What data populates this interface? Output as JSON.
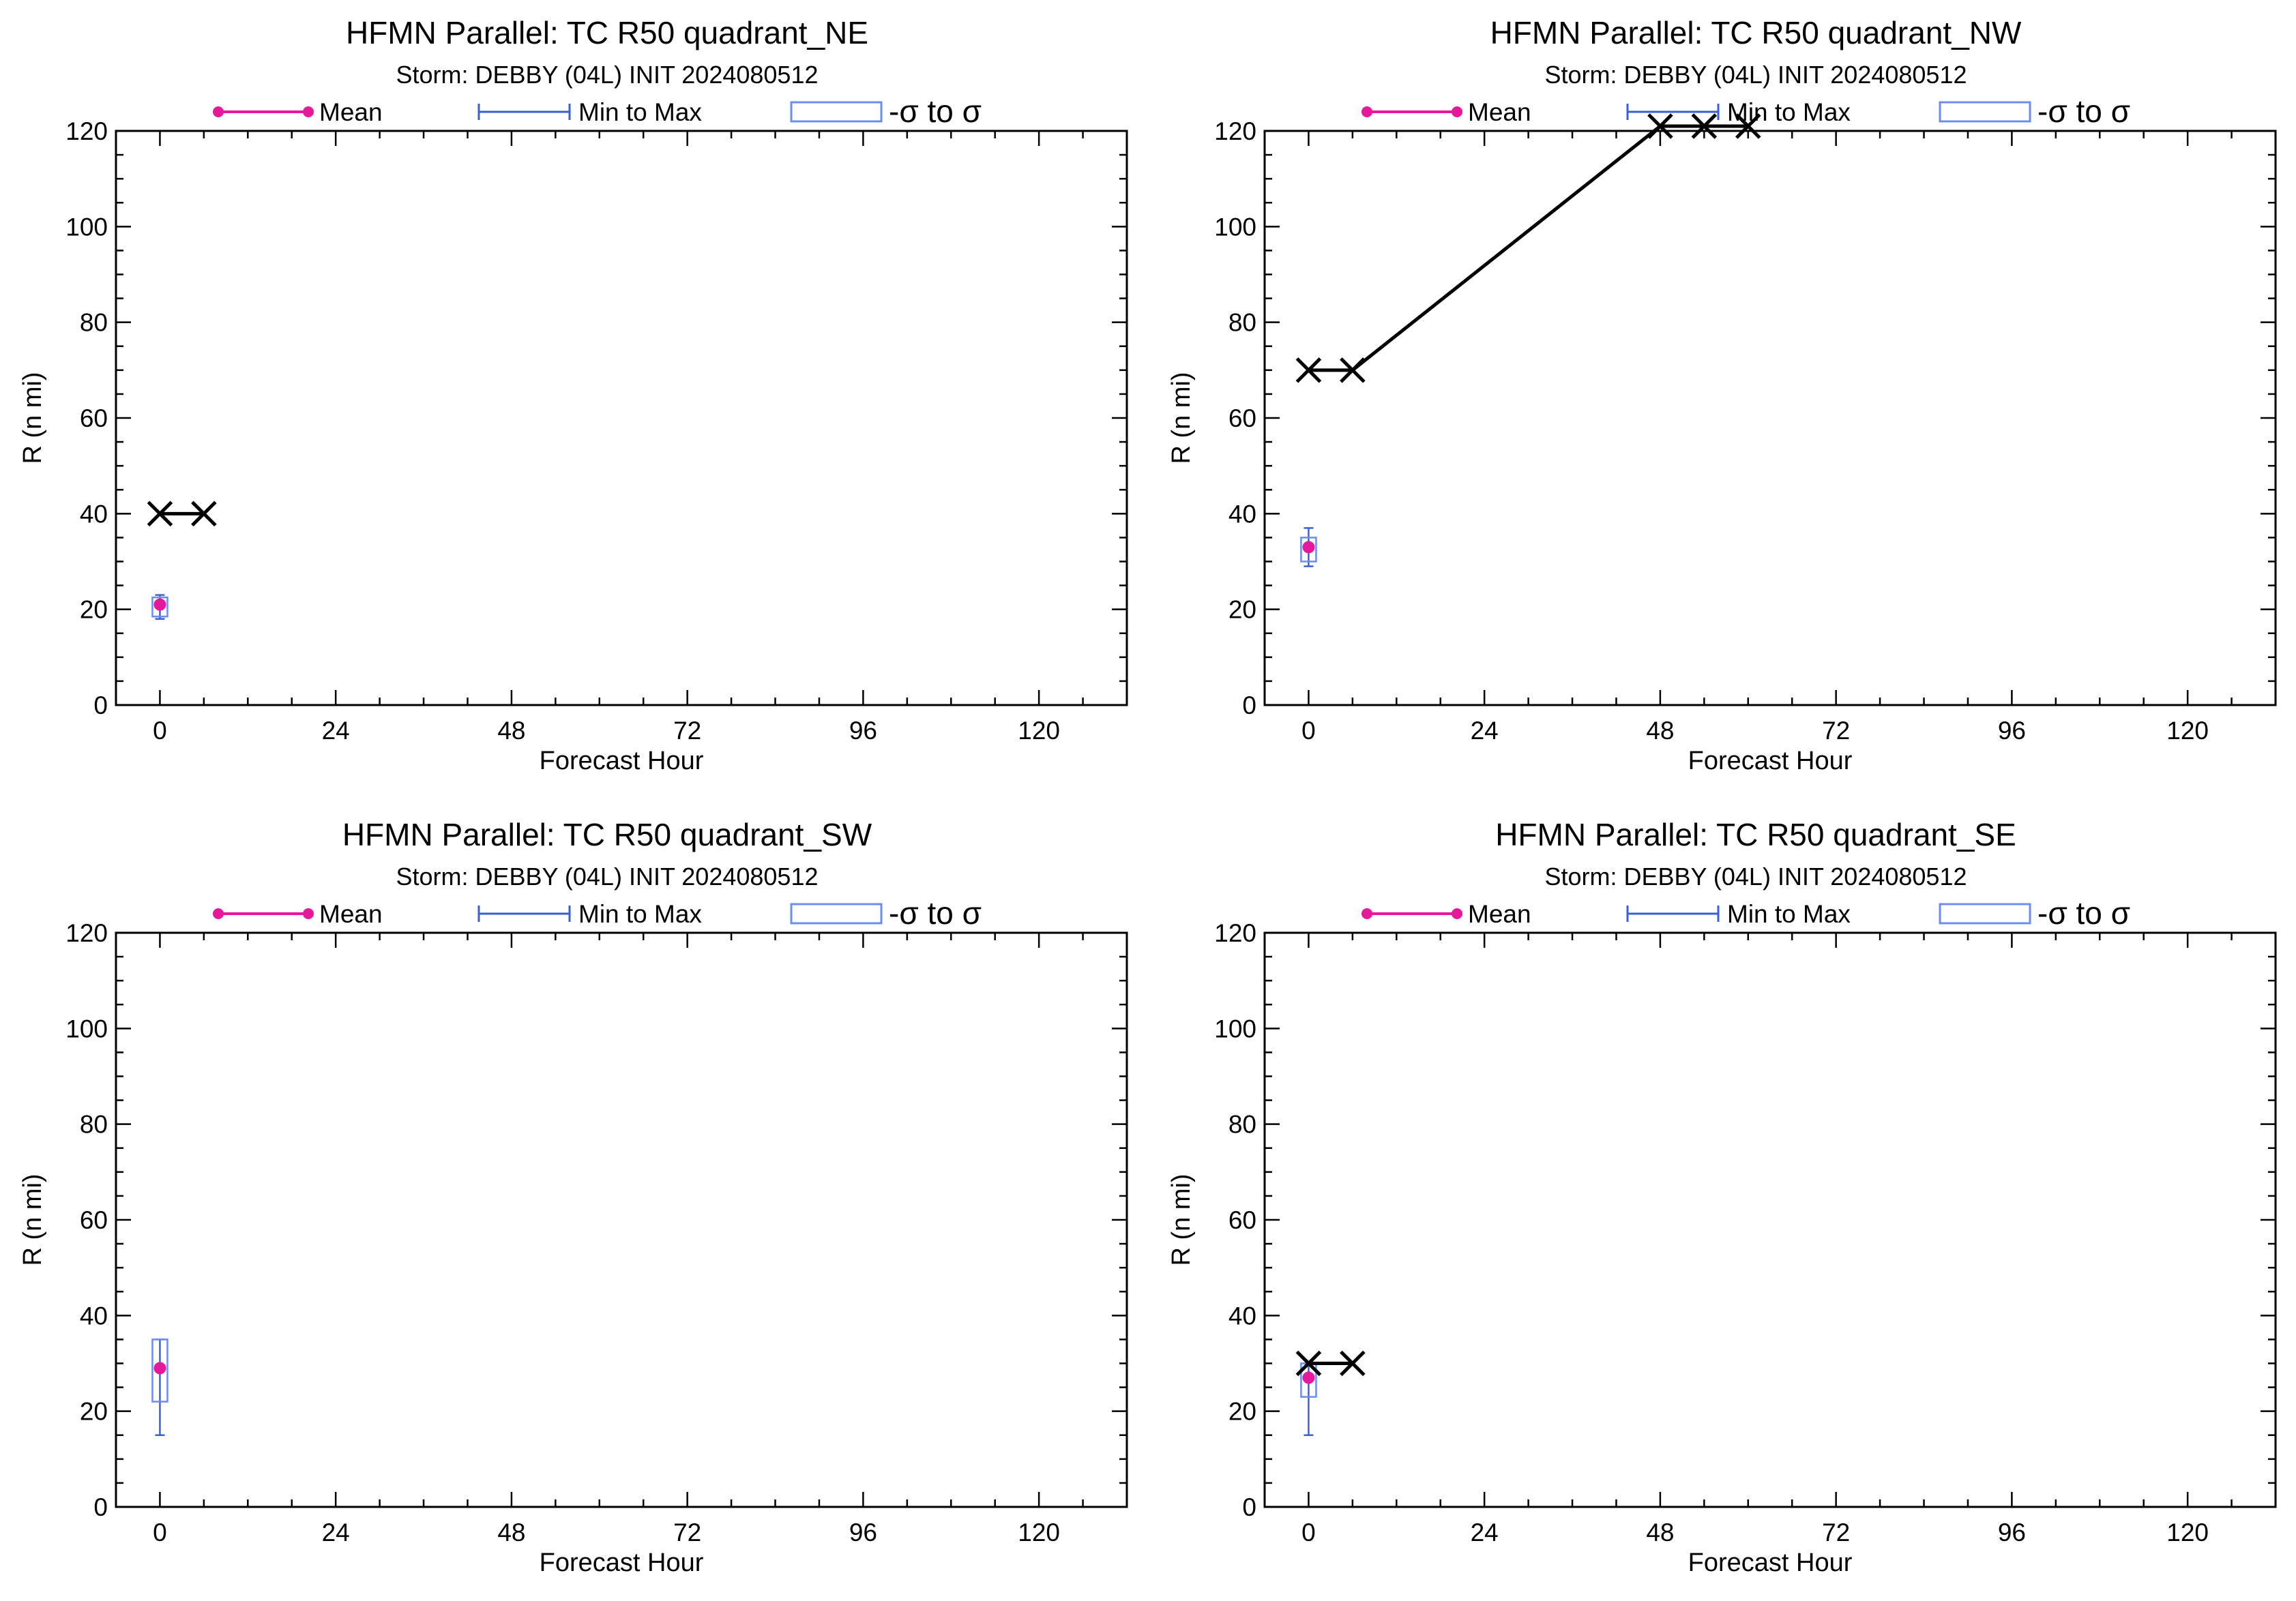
{
  "legend": {
    "mean_label": "Mean",
    "minmax_label": "Min to Max",
    "sigma_label": "-σ to σ"
  },
  "colors": {
    "mean": "#e6199b",
    "minmax": "#3a5fd9",
    "sigma": "#6b8cf2",
    "track": "#000000",
    "axis": "#000000"
  },
  "chart_data": [
    {
      "type": "scatter",
      "title": "HFMN Parallel: TC  R50 quadrant_NE",
      "subtitle": "Storm: DEBBY (04L) INIT 2024080512",
      "xlabel": "Forecast Hour",
      "ylabel": "R (n mi)",
      "xlim": [
        -6,
        132
      ],
      "ylim": [
        0,
        120
      ],
      "xticks": [
        "0",
        "24",
        "48",
        "72",
        "96",
        "120"
      ],
      "yticks": [
        "0",
        "20",
        "40",
        "60",
        "80",
        "100",
        "120"
      ],
      "legend_position": "top",
      "series": [
        {
          "name": "Mean",
          "points": [
            {
              "x": 0,
              "mean": 21,
              "min": 18,
              "max": 23,
              "sigma_low": 18.5,
              "sigma_high": 22.5
            }
          ]
        }
      ],
      "track": [
        {
          "x": 0,
          "y": 40
        },
        {
          "x": 6,
          "y": 40
        }
      ]
    },
    {
      "type": "scatter",
      "title": "HFMN Parallel: TC  R50 quadrant_NW",
      "subtitle": "Storm: DEBBY (04L) INIT 2024080512",
      "xlabel": "Forecast Hour",
      "ylabel": "R (n mi)",
      "xlim": [
        -6,
        132
      ],
      "ylim": [
        0,
        120
      ],
      "xticks": [
        "0",
        "24",
        "48",
        "72",
        "96",
        "120"
      ],
      "yticks": [
        "0",
        "20",
        "40",
        "60",
        "80",
        "100",
        "120"
      ],
      "legend_position": "top",
      "series": [
        {
          "name": "Mean",
          "points": [
            {
              "x": 0,
              "mean": 33,
              "min": 29,
              "max": 37,
              "sigma_low": 30,
              "sigma_high": 35
            }
          ]
        }
      ],
      "track": [
        {
          "x": 0,
          "y": 70
        },
        {
          "x": 6,
          "y": 70
        },
        {
          "x": 48,
          "y": 121
        },
        {
          "x": 54,
          "y": 121
        },
        {
          "x": 60,
          "y": 121
        }
      ]
    },
    {
      "type": "scatter",
      "title": "HFMN Parallel: TC  R50 quadrant_SW",
      "subtitle": "Storm: DEBBY (04L) INIT 2024080512",
      "xlabel": "Forecast Hour",
      "ylabel": "R (n mi)",
      "xlim": [
        -6,
        132
      ],
      "ylim": [
        0,
        120
      ],
      "xticks": [
        "0",
        "24",
        "48",
        "72",
        "96",
        "120"
      ],
      "yticks": [
        "0",
        "20",
        "40",
        "60",
        "80",
        "100",
        "120"
      ],
      "legend_position": "top",
      "series": [
        {
          "name": "Mean",
          "points": [
            {
              "x": 0,
              "mean": 29,
              "min": 15,
              "max": 35,
              "sigma_low": 22,
              "sigma_high": 35
            }
          ]
        }
      ],
      "track": []
    },
    {
      "type": "scatter",
      "title": "HFMN Parallel: TC  R50 quadrant_SE",
      "subtitle": "Storm: DEBBY (04L) INIT 2024080512",
      "xlabel": "Forecast Hour",
      "ylabel": "R (n mi)",
      "xlim": [
        -6,
        132
      ],
      "ylim": [
        0,
        120
      ],
      "xticks": [
        "0",
        "24",
        "48",
        "72",
        "96",
        "120"
      ],
      "yticks": [
        "0",
        "20",
        "40",
        "60",
        "80",
        "100",
        "120"
      ],
      "legend_position": "top",
      "series": [
        {
          "name": "Mean",
          "points": [
            {
              "x": 0,
              "mean": 27,
              "min": 15,
              "max": 30,
              "sigma_low": 23,
              "sigma_high": 30
            }
          ]
        }
      ],
      "track": [
        {
          "x": 0,
          "y": 30
        },
        {
          "x": 6,
          "y": 30
        }
      ]
    }
  ]
}
